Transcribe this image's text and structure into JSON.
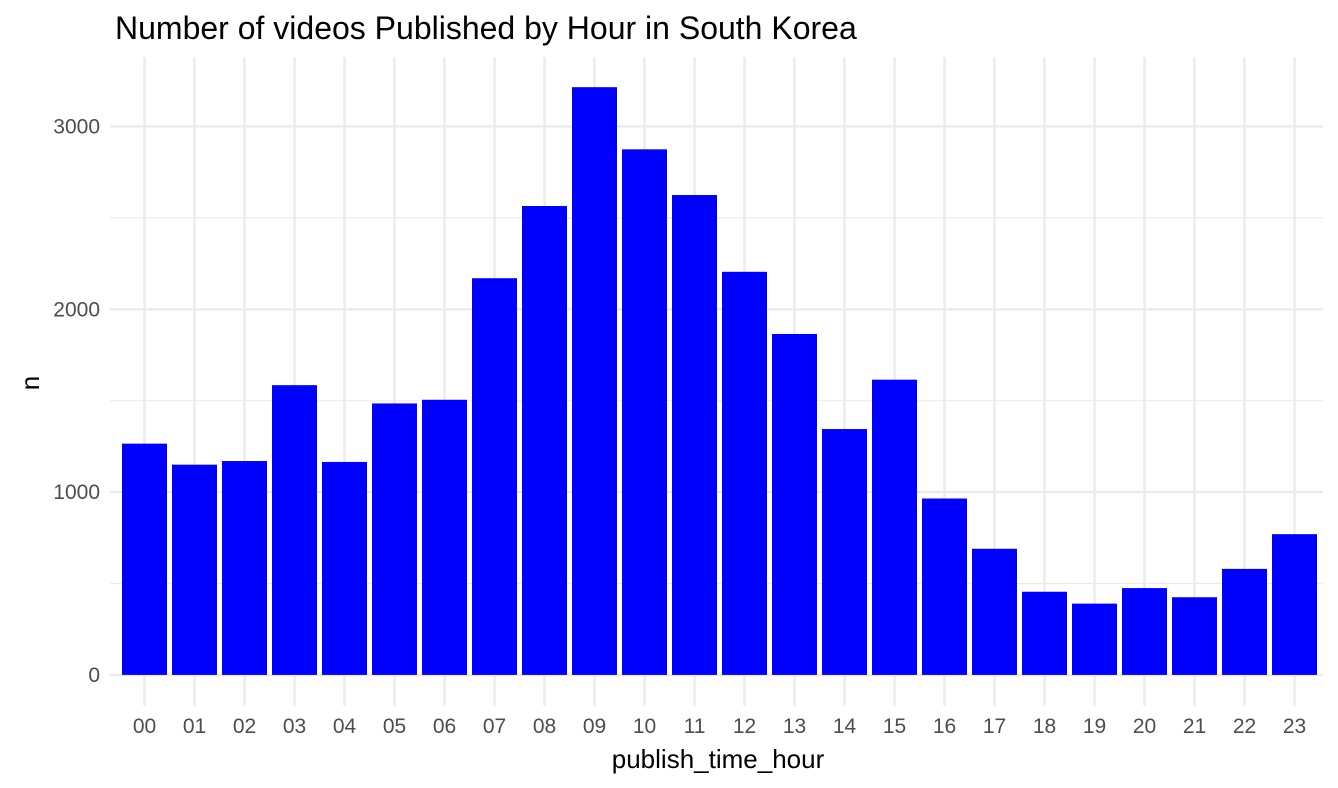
{
  "chart_data": {
    "type": "bar",
    "title": "Number of videos Published by Hour in South Korea",
    "xlabel": "publish_time_hour",
    "ylabel": "n",
    "categories": [
      "00",
      "01",
      "02",
      "03",
      "04",
      "05",
      "06",
      "07",
      "08",
      "09",
      "10",
      "11",
      "12",
      "13",
      "14",
      "15",
      "16",
      "17",
      "18",
      "19",
      "20",
      "21",
      "22",
      "23"
    ],
    "values": [
      1265,
      1150,
      1170,
      1585,
      1165,
      1485,
      1505,
      2170,
      2565,
      3215,
      2875,
      2625,
      2205,
      1865,
      1345,
      1615,
      965,
      690,
      455,
      390,
      475,
      425,
      580,
      770
    ],
    "yticks": [
      0,
      1000,
      2000,
      3000
    ],
    "ylim": [
      -170,
      3380
    ],
    "bar_color": "#0000FF",
    "grid": true,
    "grid_color": "#EBEBEB",
    "legend": "none"
  }
}
